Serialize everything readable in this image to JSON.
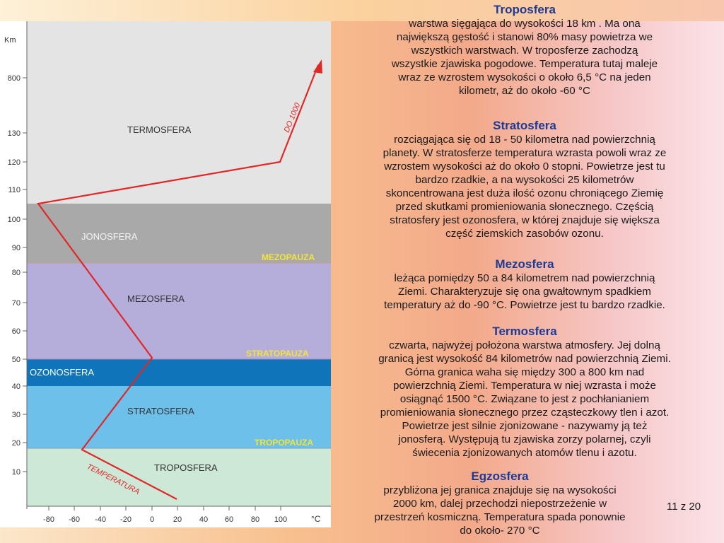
{
  "diagram": {
    "axis_unit_y": "Km",
    "axis_unit_x": "°C",
    "y_ticks": [
      "10",
      "20",
      "30",
      "40",
      "50",
      "60",
      "70",
      "80",
      "90",
      "100",
      "110",
      "120",
      "130",
      "800"
    ],
    "x_ticks": [
      "-80",
      "-60",
      "-40",
      "-20",
      "0",
      "20",
      "40",
      "60",
      "80",
      "100"
    ],
    "layers": {
      "troposfera": "TROPOSFERA",
      "stratosfera": "STRATOSFERA",
      "ozonosfera": "OZONOSFERA",
      "mezosfera": "MEZOSFERA",
      "jonosfera": "JONOSFERA",
      "termosfera": "TERMOSFERA"
    },
    "boundaries": {
      "tropopauza": "TROPOPAUZA",
      "stratopauza": "STRATOPAUZA",
      "mezopauza": "MEZOPAUZA"
    },
    "curve_label": "TEMPERATURA",
    "arrow_label": "DO 1000",
    "colors": {
      "troposfera": "#cde8d6",
      "stratosfera": "#6cc0ea",
      "ozonosfera": "#0f74ba",
      "mezosfera": "#b5aedb",
      "jonosfera": "#a9a9a9",
      "termosfera": "#e4e4e4",
      "curve": "#e02828",
      "boundary_text": "#f2e43a"
    }
  },
  "sections": [
    {
      "title": "Troposfera",
      "lines": [
        "warstwa sięgająca do wysokości 18 km . Ma ona",
        "największą gęstość i stanowi 80% masy powietrza we",
        "wszystkich warstwach. W troposferze zachodzą",
        "wszystkie zjawiska pogodowe. Temperatura tutaj maleje",
        "wraz ze wzrostem wysokości o około 6,5 °C na jeden",
        "kilometr, aż do około -60 °C"
      ]
    },
    {
      "title": "Stratosfera",
      "lines": [
        "rozciągająca się od 18 - 50 kilometra nad powierzchnią",
        "planety. W stratosferze temperatura wzrasta powoli wraz ze",
        "wzrostem wysokości aż do około 0 stopni. Powietrze jest tu",
        "bardzo rzadkie, a na wysokości 25 kilometrów",
        "skoncentrowana jest duża ilość ozonu chroniącego Ziemię",
        "przed skutkami promieniowania słonecznego. Częścią",
        "stratosfery jest ozonosfera, w której znajduje się większa",
        "część ziemskich zasobów ozonu."
      ]
    },
    {
      "title": "Mezosfera",
      "lines": [
        "leżąca pomiędzy 50 a 84 kilometrem nad powierzchnią",
        "Ziemi. Charakteryzuje się ona gwałtownym spadkiem",
        "temperatury aż do -90 °C. Powietrze jest tu bardzo rzadkie."
      ]
    },
    {
      "title": "Termosfera",
      "lines": [
        "czwarta, najwyżej położona warstwa atmosfery. Jej dolną",
        "granicą jest wysokość 84 kilometrów nad powierzchnią Ziemi.",
        "Górna granica waha się między 300 a 800 km nad",
        "powierzchnią Ziemi. Temperatura w niej wzrasta i może",
        "osiągnąć 1500 °C.  Związane to jest z pochłanianiem",
        "promieniowania słonecznego przez cząsteczkowy tlen i azot.",
        "Powietrze jest silnie zjonizowane -  nazywamy ją też",
        "jonosferą. Występują tu zjawiska zorzy polarnej, czyli",
        "świecenia zjonizowanych atomów tlenu i azotu."
      ]
    },
    {
      "title": "Egzosfera",
      "lines": [
        "przybliżona jej granica znajduje się na wysokości",
        "2000 km, dalej przechodzi niepostrzeżenie w",
        "przestrzeń kosmiczną. Temperatura spada ponownie",
        "do około- 270 °C"
      ]
    }
  ],
  "page": {
    "number": "11  z 20"
  }
}
